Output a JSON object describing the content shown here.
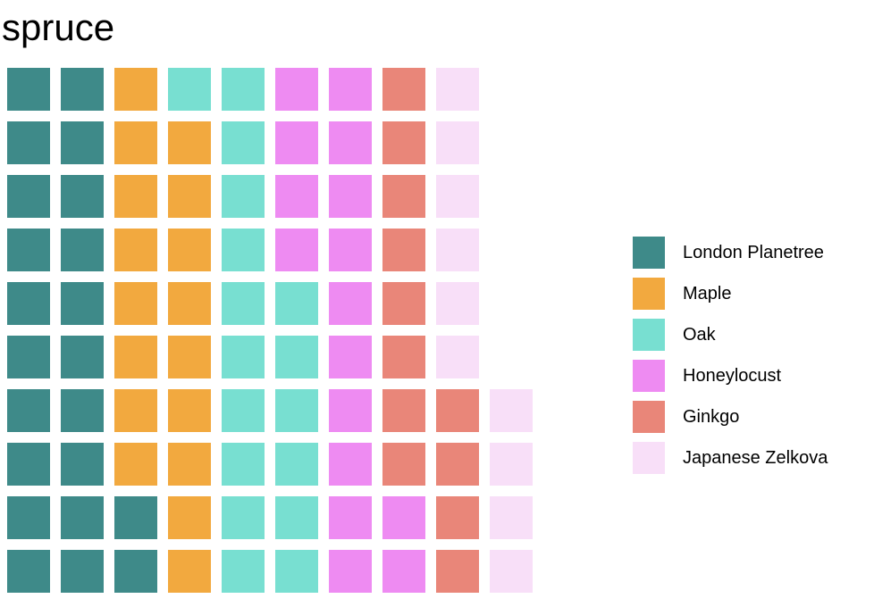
{
  "chart_data": {
    "type": "waffle",
    "title": "spruce",
    "grid": {
      "rows": 10
    },
    "fill_order": "column-major, bottom-to-top",
    "series": [
      {
        "name": "London Planetree",
        "value": 22,
        "color": "#3E8A89"
      },
      {
        "name": "Maple",
        "value": 17,
        "color": "#F2A93F"
      },
      {
        "name": "Oak",
        "value": 17,
        "color": "#78DFD1"
      },
      {
        "name": "Honeylocust",
        "value": 16,
        "color": "#EE8BF2"
      },
      {
        "name": "Ginkgo",
        "value": 12,
        "color": "#E98679"
      },
      {
        "name": "Japanese Zelkova",
        "value": 10,
        "color": "#F8DFF8"
      }
    ],
    "legend": "right"
  }
}
